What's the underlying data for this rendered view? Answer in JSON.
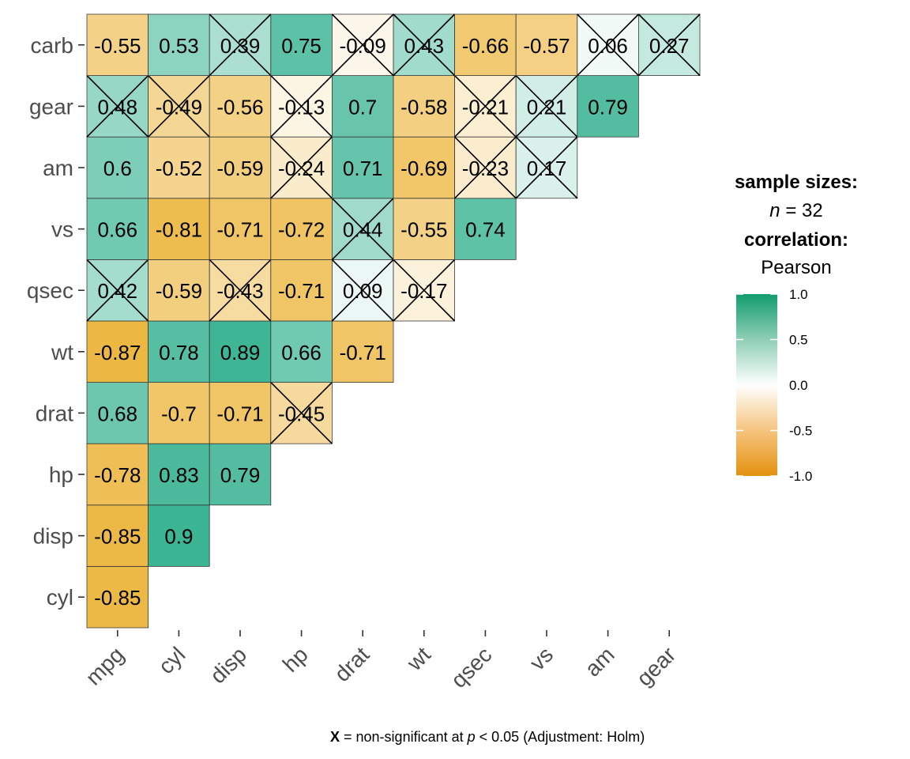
{
  "chart_data": {
    "type": "heatmap",
    "subtype": "correlation-matrix-lower-triangle",
    "x_categories": [
      "mpg",
      "cyl",
      "disp",
      "hp",
      "drat",
      "wt",
      "qsec",
      "vs",
      "am",
      "gear"
    ],
    "y_categories": [
      "cyl",
      "disp",
      "hp",
      "drat",
      "wt",
      "qsec",
      "vs",
      "am",
      "gear",
      "carb"
    ],
    "cells": [
      {
        "x": "mpg",
        "y": "cyl",
        "value": -0.85,
        "label": "-0.85",
        "significant": true
      },
      {
        "x": "mpg",
        "y": "disp",
        "value": -0.85,
        "label": "-0.85",
        "significant": true
      },
      {
        "x": "cyl",
        "y": "disp",
        "value": 0.9,
        "label": "0.9",
        "significant": true
      },
      {
        "x": "mpg",
        "y": "hp",
        "value": -0.78,
        "label": "-0.78",
        "significant": true
      },
      {
        "x": "cyl",
        "y": "hp",
        "value": 0.83,
        "label": "0.83",
        "significant": true
      },
      {
        "x": "disp",
        "y": "hp",
        "value": 0.79,
        "label": "0.79",
        "significant": true
      },
      {
        "x": "mpg",
        "y": "drat",
        "value": 0.68,
        "label": "0.68",
        "significant": true
      },
      {
        "x": "cyl",
        "y": "drat",
        "value": -0.7,
        "label": "-0.7",
        "significant": true
      },
      {
        "x": "disp",
        "y": "drat",
        "value": -0.71,
        "label": "-0.71",
        "significant": true
      },
      {
        "x": "hp",
        "y": "drat",
        "value": -0.45,
        "label": "-0.45",
        "significant": false
      },
      {
        "x": "mpg",
        "y": "wt",
        "value": -0.87,
        "label": "-0.87",
        "significant": true
      },
      {
        "x": "cyl",
        "y": "wt",
        "value": 0.78,
        "label": "0.78",
        "significant": true
      },
      {
        "x": "disp",
        "y": "wt",
        "value": 0.89,
        "label": "0.89",
        "significant": true
      },
      {
        "x": "hp",
        "y": "wt",
        "value": 0.66,
        "label": "0.66",
        "significant": true
      },
      {
        "x": "drat",
        "y": "wt",
        "value": -0.71,
        "label": "-0.71",
        "significant": true
      },
      {
        "x": "mpg",
        "y": "qsec",
        "value": 0.42,
        "label": "0.42",
        "significant": false
      },
      {
        "x": "cyl",
        "y": "qsec",
        "value": -0.59,
        "label": "-0.59",
        "significant": true
      },
      {
        "x": "disp",
        "y": "qsec",
        "value": -0.43,
        "label": "-0.43",
        "significant": false
      },
      {
        "x": "hp",
        "y": "qsec",
        "value": -0.71,
        "label": "-0.71",
        "significant": true
      },
      {
        "x": "drat",
        "y": "qsec",
        "value": 0.09,
        "label": "0.09",
        "significant": false
      },
      {
        "x": "wt",
        "y": "qsec",
        "value": -0.17,
        "label": "-0.17",
        "significant": false
      },
      {
        "x": "mpg",
        "y": "vs",
        "value": 0.66,
        "label": "0.66",
        "significant": true
      },
      {
        "x": "cyl",
        "y": "vs",
        "value": -0.81,
        "label": "-0.81",
        "significant": true
      },
      {
        "x": "disp",
        "y": "vs",
        "value": -0.71,
        "label": "-0.71",
        "significant": true
      },
      {
        "x": "hp",
        "y": "vs",
        "value": -0.72,
        "label": "-0.72",
        "significant": true
      },
      {
        "x": "drat",
        "y": "vs",
        "value": 0.44,
        "label": "0.44",
        "significant": false
      },
      {
        "x": "wt",
        "y": "vs",
        "value": -0.55,
        "label": "-0.55",
        "significant": true
      },
      {
        "x": "qsec",
        "y": "vs",
        "value": 0.74,
        "label": "0.74",
        "significant": true
      },
      {
        "x": "mpg",
        "y": "am",
        "value": 0.6,
        "label": "0.6",
        "significant": true
      },
      {
        "x": "cyl",
        "y": "am",
        "value": -0.52,
        "label": "-0.52",
        "significant": true
      },
      {
        "x": "disp",
        "y": "am",
        "value": -0.59,
        "label": "-0.59",
        "significant": true
      },
      {
        "x": "hp",
        "y": "am",
        "value": -0.24,
        "label": "-0.24",
        "significant": false
      },
      {
        "x": "drat",
        "y": "am",
        "value": 0.71,
        "label": "0.71",
        "significant": true
      },
      {
        "x": "wt",
        "y": "am",
        "value": -0.69,
        "label": "-0.69",
        "significant": true
      },
      {
        "x": "qsec",
        "y": "am",
        "value": -0.23,
        "label": "-0.23",
        "significant": false
      },
      {
        "x": "vs",
        "y": "am",
        "value": 0.17,
        "label": "0.17",
        "significant": false
      },
      {
        "x": "mpg",
        "y": "gear",
        "value": 0.48,
        "label": "0.48",
        "significant": false
      },
      {
        "x": "cyl",
        "y": "gear",
        "value": -0.49,
        "label": "-0.49",
        "significant": false
      },
      {
        "x": "disp",
        "y": "gear",
        "value": -0.56,
        "label": "-0.56",
        "significant": true
      },
      {
        "x": "hp",
        "y": "gear",
        "value": -0.13,
        "label": "-0.13",
        "significant": false
      },
      {
        "x": "drat",
        "y": "gear",
        "value": 0.7,
        "label": "0.7",
        "significant": true
      },
      {
        "x": "wt",
        "y": "gear",
        "value": -0.58,
        "label": "-0.58",
        "significant": true
      },
      {
        "x": "qsec",
        "y": "gear",
        "value": -0.21,
        "label": "-0.21",
        "significant": false
      },
      {
        "x": "vs",
        "y": "gear",
        "value": 0.21,
        "label": "0.21",
        "significant": false
      },
      {
        "x": "am",
        "y": "gear",
        "value": 0.79,
        "label": "0.79",
        "significant": true
      },
      {
        "x": "mpg",
        "y": "carb",
        "value": -0.55,
        "label": "-0.55",
        "significant": true
      },
      {
        "x": "cyl",
        "y": "carb",
        "value": 0.53,
        "label": "0.53",
        "significant": true
      },
      {
        "x": "disp",
        "y": "carb",
        "value": 0.39,
        "label": "0.39",
        "significant": false
      },
      {
        "x": "hp",
        "y": "carb",
        "value": 0.75,
        "label": "0.75",
        "significant": true
      },
      {
        "x": "drat",
        "y": "carb",
        "value": -0.09,
        "label": "-0.09",
        "significant": false
      },
      {
        "x": "wt",
        "y": "carb",
        "value": 0.43,
        "label": "0.43",
        "significant": false
      },
      {
        "x": "qsec",
        "y": "carb",
        "value": -0.66,
        "label": "-0.66",
        "significant": true
      },
      {
        "x": "vs",
        "y": "carb",
        "value": -0.57,
        "label": "-0.57",
        "significant": true
      },
      {
        "x": "am",
        "y": "carb",
        "value": 0.06,
        "label": "0.06",
        "significant": false
      },
      {
        "x": "gear",
        "y": "carb",
        "value": 0.27,
        "label": "0.27",
        "significant": false
      }
    ],
    "legend": {
      "title_sample": "sample sizes:",
      "n_label": "n",
      "n_value": "= 32",
      "title_corr": "correlation:",
      "method": "Pearson",
      "range": [
        -1.0,
        1.0
      ],
      "ticks": [
        "1.0",
        "0.5",
        "0.0",
        "-0.5",
        "-1.0"
      ],
      "tick_values": [
        1.0,
        0.5,
        0.0,
        -0.5,
        -1.0
      ]
    },
    "colors": {
      "low": "#E69F00",
      "mid": "#FFFFFF",
      "high": "#009E73",
      "cell_border": "#3a3a3a",
      "cross": "#000000"
    },
    "caption": {
      "mark": "X",
      "text_before": " = non-significant at ",
      "p": "p",
      "text_after": " < 0.05 (Adjustment: Holm)"
    }
  }
}
